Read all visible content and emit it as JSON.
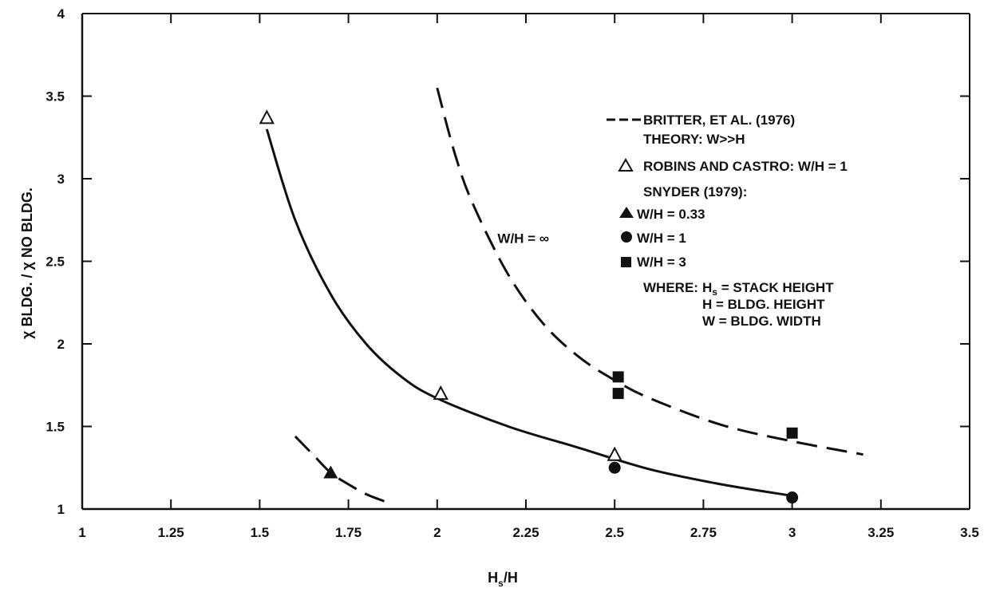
{
  "chart_data": {
    "type": "line",
    "xlabel": "Hs/H",
    "xlabel_main": "H",
    "xlabel_sub": "s",
    "xlabel_tail": "/H",
    "ylabel": "χ BLDG. / χ NO BLDG.",
    "xlim": [
      1,
      3.5
    ],
    "ylim": [
      1,
      4
    ],
    "x_ticks": [
      1,
      1.25,
      1.5,
      1.75,
      2,
      2.25,
      2.5,
      2.75,
      3,
      3.25,
      3.5
    ],
    "x_tick_labels": [
      "1",
      "1.25",
      "1.5",
      "1.75",
      "2",
      "2.25",
      "2.5",
      "2.75",
      "3",
      "3.25",
      "3.5"
    ],
    "y_ticks": [
      1,
      1.5,
      2,
      2.5,
      3,
      3.5,
      4
    ],
    "y_tick_labels": [
      "1",
      "1.5",
      "2",
      "2.5",
      "3",
      "3.5",
      "4"
    ],
    "grid": false,
    "legend_position": "top-right",
    "series": [
      {
        "name": "BRITTER, ET AL. (1976) THEORY: W>>H",
        "style": "dashed-curve",
        "x": [
          2.0,
          2.05,
          2.1,
          2.2,
          2.3,
          2.4,
          2.5,
          2.6,
          2.8,
          3.0,
          3.2
        ],
        "y": [
          3.55,
          3.15,
          2.85,
          2.42,
          2.12,
          1.92,
          1.78,
          1.67,
          1.51,
          1.41,
          1.33
        ]
      },
      {
        "name": "ROBINS AND CASTRO: W/H = 1",
        "style": "solid-curve",
        "x": [
          1.52,
          1.6,
          1.7,
          1.8,
          1.9,
          2.0,
          2.2,
          2.4,
          2.6,
          2.8,
          3.0
        ],
        "y": [
          3.3,
          2.75,
          2.3,
          2.0,
          1.8,
          1.67,
          1.5,
          1.37,
          1.24,
          1.15,
          1.08
        ],
        "markers": {
          "shape": "open-triangle",
          "x": [
            1.52,
            2.01,
            2.5
          ],
          "y": [
            3.37,
            1.7,
            1.33
          ]
        }
      },
      {
        "name": "W/H = 0.33",
        "style": "dashed-curve",
        "x": [
          1.6,
          1.65,
          1.7,
          1.75,
          1.8,
          1.86
        ],
        "y": [
          1.44,
          1.33,
          1.22,
          1.15,
          1.09,
          1.04
        ],
        "markers": {
          "shape": "filled-triangle",
          "x": [
            1.7
          ],
          "y": [
            1.22
          ]
        }
      },
      {
        "name": "W/H = 1",
        "style": "markers-only",
        "markers": {
          "shape": "filled-circle",
          "x": [
            2.5,
            3.0
          ],
          "y": [
            1.25,
            1.07
          ]
        }
      },
      {
        "name": "W/H = 3",
        "style": "markers-only",
        "markers": {
          "shape": "filled-square",
          "x": [
            2.51,
            2.51,
            3.0
          ],
          "y": [
            1.8,
            1.7,
            1.46
          ]
        }
      }
    ],
    "legend": {
      "britter_line1": "BRITTER, ET AL. (1976)",
      "britter_line2": "THEORY:  W>>H",
      "robins": "ROBINS AND CASTRO:  W/H = 1",
      "snyder_header": "SNYDER (1979):",
      "snyder_033": "W/H = 0.33",
      "snyder_1": "W/H = 1",
      "snyder_3": "W/H = 3",
      "where_label": "WHERE:",
      "where_hs_main": "H",
      "where_hs_sub": "s",
      "where_hs_def": " = STACK HEIGHT",
      "where_h": "H = BLDG. HEIGHT",
      "where_w": "W = BLDG. WIDTH"
    },
    "annotations": [
      {
        "text": "W/H = ∞",
        "x": 2.17,
        "y": 2.61
      }
    ]
  }
}
